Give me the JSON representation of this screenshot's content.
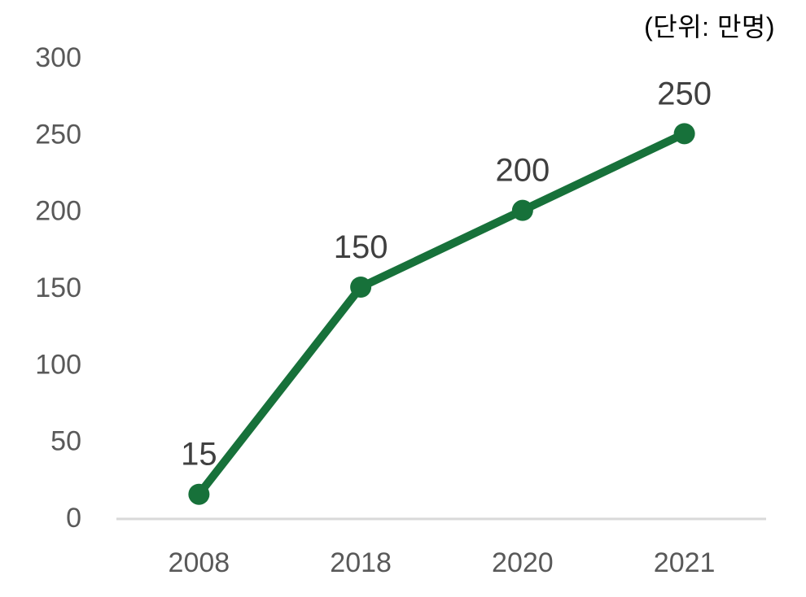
{
  "unit_label": "(단위: 만명)",
  "chart_data": {
    "type": "line",
    "title": "",
    "unit_label": "(단위: 만명)",
    "categories": [
      "2008",
      "2018",
      "2020",
      "2021"
    ],
    "values": [
      15,
      150,
      200,
      250
    ],
    "data_labels": [
      "15",
      "150",
      "200",
      "250"
    ],
    "xlabel": "",
    "ylabel": "",
    "ylim": [
      0,
      300
    ],
    "y_ticks": [
      0,
      50,
      100,
      150,
      200,
      250,
      300
    ],
    "grid": false,
    "legend": "none",
    "marker": "filled-circle",
    "colors": {
      "line": "#17713a",
      "marker": "#17713a",
      "axis_line": "#d9d9d9",
      "tick_label": "#595959",
      "data_label": "#404040",
      "unit_label": "#000000",
      "background": "#ffffff"
    }
  }
}
